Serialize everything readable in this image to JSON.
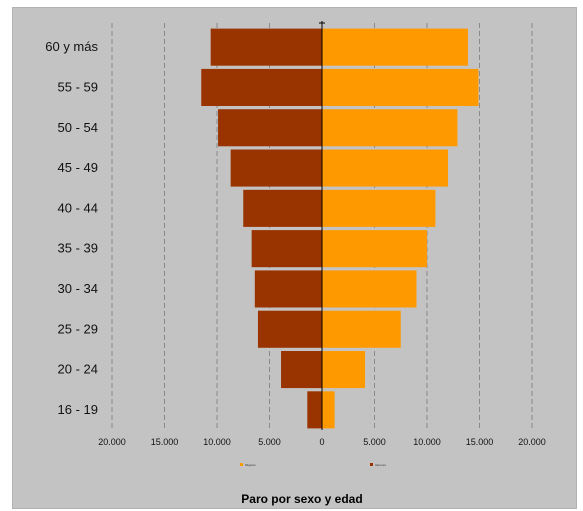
{
  "chart_data": {
    "type": "bar",
    "orientation": "horizontal",
    "layout": "population-pyramid",
    "title": "Paro por sexo y edad",
    "categories": [
      "60 y más",
      "55 - 59",
      "50 - 54",
      "45 - 49",
      "40 - 44",
      "35 - 39",
      "30 - 34",
      "25 - 29",
      "20 - 24",
      "16 - 19"
    ],
    "series": [
      {
        "name": "Varones",
        "side": "left",
        "color": "#993300",
        "values": [
          10600,
          11500,
          9900,
          8700,
          7500,
          6700,
          6400,
          6100,
          3900,
          1400
        ]
      },
      {
        "name": "Mujeres",
        "side": "right",
        "color": "#ff9900",
        "values": [
          13900,
          14900,
          12900,
          12000,
          10800,
          10000,
          9000,
          7500,
          4100,
          1200
        ]
      }
    ],
    "x_ticks": [
      "20.000",
      "15.000",
      "10.000",
      "5.000",
      "0",
      "5.000",
      "10.000",
      "15.000",
      "20.000"
    ],
    "xlim": [
      -20000,
      20000
    ],
    "grid": "vertical dashed",
    "legend": "bottom",
    "background": "#c3c3c3"
  }
}
